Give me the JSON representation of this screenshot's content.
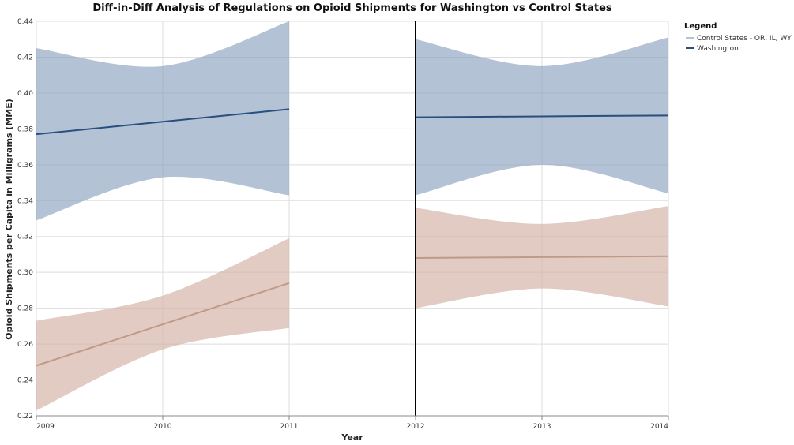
{
  "chart_data": {
    "type": "line",
    "title": "Diff-in-Diff Analysis of Regulations on Opioid Shipments for Washington vs Control States",
    "xlabel": "Year",
    "ylabel": "Opioid Shipments per Capita in Milligrams (MME)",
    "xlim": [
      2009,
      2014
    ],
    "ylim": [
      0.22,
      0.44
    ],
    "x_ticks": [
      "2009",
      "2010",
      "2011",
      "2012",
      "2013",
      "2014"
    ],
    "y_ticks": [
      "0.22",
      "0.24",
      "0.26",
      "0.28",
      "0.30",
      "0.32",
      "0.34",
      "0.36",
      "0.38",
      "0.40",
      "0.42",
      "0.44"
    ],
    "policy_line_x": 2012,
    "grid": true,
    "legend_placement": "right",
    "legend": {
      "title": "Legend",
      "entries": [
        {
          "label": "Control States - OR, IL, WY",
          "color": "#b0c4d8"
        },
        {
          "label": "Washington",
          "color": "#2a4f7f"
        }
      ]
    },
    "series": [
      {
        "name": "Washington",
        "color": "#2a4f7f",
        "band_color": "#8fa5bf",
        "segments": [
          {
            "x": [
              2009,
              2010,
              2011
            ],
            "y": [
              0.377,
              0.384,
              0.391
            ],
            "lower": [
              0.329,
              0.353,
              0.343
            ],
            "upper": [
              0.425,
              0.415,
              0.44
            ]
          },
          {
            "x": [
              2012,
              2013,
              2014
            ],
            "y": [
              0.3865,
              0.387,
              0.3875
            ],
            "lower": [
              0.343,
              0.36,
              0.344
            ],
            "upper": [
              0.43,
              0.415,
              0.431
            ]
          }
        ]
      },
      {
        "name": "Control States - OR, IL, WY",
        "color": "#c09a88",
        "band_color": "#d3b3a6",
        "segments": [
          {
            "x": [
              2009,
              2010,
              2011
            ],
            "y": [
              0.248,
              0.271,
              0.294
            ],
            "lower": [
              0.223,
              0.257,
              0.269
            ],
            "upper": [
              0.273,
              0.287,
              0.319
            ]
          },
          {
            "x": [
              2012,
              2013,
              2014
            ],
            "y": [
              0.308,
              0.3085,
              0.309
            ],
            "lower": [
              0.28,
              0.291,
              0.281
            ],
            "upper": [
              0.336,
              0.327,
              0.337
            ]
          }
        ]
      }
    ]
  }
}
